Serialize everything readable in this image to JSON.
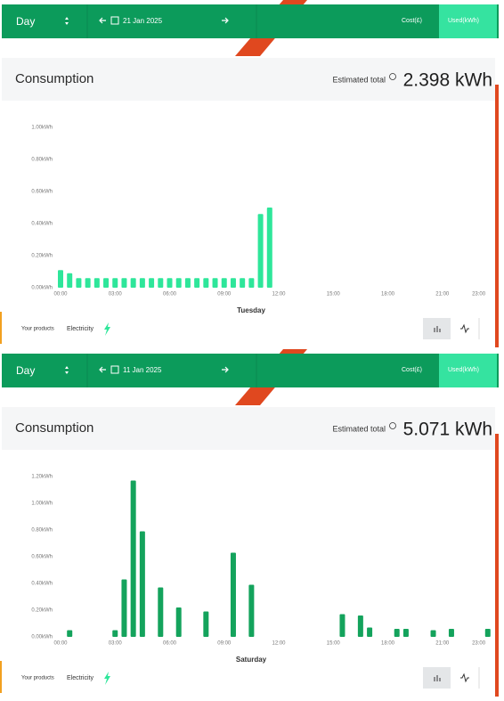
{
  "panels": [
    {
      "header": {
        "period": "Day",
        "date": "21 Jan 2025",
        "cost_tab": "Cost(£)",
        "used_tab": "Used(kWh)"
      },
      "card": {
        "title": "Consumption",
        "estimate_label": "Estimated total",
        "estimate_value": "2.398 kWh"
      },
      "footer": {
        "products": "Your products",
        "product": "Electricity"
      }
    },
    {
      "header": {
        "period": "Day",
        "date": "11 Jan 2025",
        "cost_tab": "Cost(£)",
        "used_tab": "Used(kWh)"
      },
      "card": {
        "title": "Consumption",
        "estimate_label": "Estimated total",
        "estimate_value": "5.071 kWh"
      },
      "footer": {
        "products": "Your products",
        "product": "Electricity"
      }
    }
  ],
  "chart_data": [
    {
      "type": "bar",
      "xlabel": "Tuesday",
      "color": "#2ee69a",
      "x": [
        0,
        0.5,
        1,
        1.5,
        2,
        2.5,
        3,
        3.5,
        4,
        4.5,
        5,
        5.5,
        6,
        6.5,
        7,
        7.5,
        8,
        8.5,
        9,
        9.5,
        10,
        10.5,
        11,
        11.5
      ],
      "values": [
        0.11,
        0.09,
        0.06,
        0.06,
        0.06,
        0.06,
        0.06,
        0.06,
        0.06,
        0.06,
        0.06,
        0.06,
        0.06,
        0.06,
        0.06,
        0.06,
        0.06,
        0.06,
        0.06,
        0.06,
        0.06,
        0.06,
        0.46,
        0.5
      ],
      "xlim": [
        0,
        24
      ],
      "ylim": [
        0,
        1
      ],
      "xticks": [
        {
          "value": 0,
          "label": "00:00"
        },
        {
          "value": 3,
          "label": "03:00"
        },
        {
          "value": 6,
          "label": "06:00"
        },
        {
          "value": 9,
          "label": "09:00"
        },
        {
          "value": 12,
          "label": "12:00"
        },
        {
          "value": 15,
          "label": "15:00"
        },
        {
          "value": 18,
          "label": "18:00"
        },
        {
          "value": 21,
          "label": "21:00"
        },
        {
          "value": 23,
          "label": "23:00"
        }
      ],
      "yticks": [
        {
          "value": 0,
          "label": "0.00kWh"
        },
        {
          "value": 0.2,
          "label": "0.20kWh"
        },
        {
          "value": 0.4,
          "label": "0.40kWh"
        },
        {
          "value": 0.6,
          "label": "0.60kWh"
        },
        {
          "value": 0.8,
          "label": "0.80kWh"
        },
        {
          "value": 1,
          "label": "1.00kWh"
        }
      ]
    },
    {
      "type": "bar",
      "xlabel": "Saturday",
      "color": "#14a35c",
      "x": [
        0.5,
        3,
        3.5,
        4,
        4.5,
        5.5,
        6.5,
        8,
        9.5,
        10.5,
        15.5,
        16.5,
        17,
        18.5,
        19,
        20.5,
        21.5,
        23.5
      ],
      "values": [
        0.05,
        0.05,
        0.43,
        1.17,
        0.79,
        0.37,
        0.22,
        0.19,
        0.63,
        0.39,
        0.17,
        0.16,
        0.07,
        0.06,
        0.06,
        0.05,
        0.06,
        0.06
      ],
      "xlim": [
        0,
        24
      ],
      "ylim": [
        0,
        1.2
      ],
      "xticks": [
        {
          "value": 0,
          "label": "00:00"
        },
        {
          "value": 3,
          "label": "03:00"
        },
        {
          "value": 6,
          "label": "06:00"
        },
        {
          "value": 9,
          "label": "09:00"
        },
        {
          "value": 12,
          "label": "12:00"
        },
        {
          "value": 15,
          "label": "15:00"
        },
        {
          "value": 18,
          "label": "18:00"
        },
        {
          "value": 21,
          "label": "21:00"
        },
        {
          "value": 23,
          "label": "23:00"
        }
      ],
      "yticks": [
        {
          "value": 0,
          "label": "0.00kWh"
        },
        {
          "value": 0.2,
          "label": "0.20kWh"
        },
        {
          "value": 0.4,
          "label": "0.40kWh"
        },
        {
          "value": 0.6,
          "label": "0.60kWh"
        },
        {
          "value": 0.8,
          "label": "0.80kWh"
        },
        {
          "value": 1,
          "label": "1.00kWh"
        },
        {
          "value": 1.2,
          "label": "1.20kWh"
        }
      ]
    }
  ]
}
